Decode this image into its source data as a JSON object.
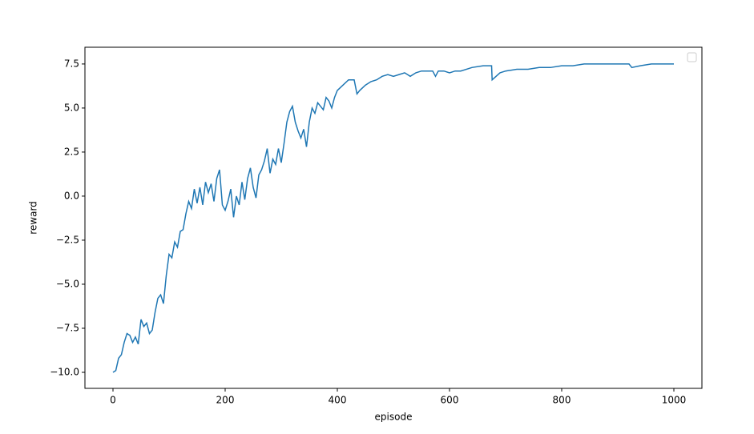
{
  "chart_data": {
    "type": "line",
    "x_label": "episode",
    "y_label": "reward",
    "x": [
      0,
      5,
      10,
      15,
      20,
      25,
      30,
      35,
      40,
      45,
      50,
      55,
      60,
      65,
      70,
      75,
      80,
      85,
      90,
      95,
      100,
      105,
      110,
      115,
      120,
      125,
      130,
      135,
      140,
      145,
      150,
      155,
      160,
      165,
      170,
      175,
      180,
      185,
      190,
      195,
      200,
      205,
      210,
      215,
      220,
      225,
      230,
      235,
      240,
      245,
      250,
      255,
      260,
      265,
      270,
      275,
      280,
      285,
      290,
      295,
      300,
      305,
      310,
      315,
      320,
      325,
      330,
      335,
      340,
      345,
      350,
      355,
      360,
      365,
      370,
      375,
      380,
      385,
      390,
      395,
      400,
      410,
      420,
      430,
      435,
      440,
      450,
      460,
      470,
      480,
      490,
      500,
      510,
      520,
      530,
      540,
      550,
      560,
      570,
      575,
      580,
      590,
      600,
      610,
      620,
      640,
      660,
      675,
      676,
      690,
      700,
      720,
      740,
      760,
      780,
      800,
      820,
      840,
      860,
      880,
      900,
      920,
      925,
      940,
      960,
      980,
      1000
    ],
    "series": [
      {
        "color": "#1f77b4",
        "values": [
          -10,
          -9.9,
          -9.2,
          -9.0,
          -8.3,
          -7.8,
          -7.9,
          -8.3,
          -8.0,
          -8.4,
          -7.0,
          -7.4,
          -7.2,
          -7.8,
          -7.6,
          -6.6,
          -5.8,
          -5.6,
          -6.1,
          -4.5,
          -3.3,
          -3.5,
          -2.6,
          -2.9,
          -2.0,
          -1.9,
          -1.0,
          -0.3,
          -0.7,
          0.4,
          -0.4,
          0.5,
          -0.5,
          0.8,
          0.2,
          0.7,
          -0.3,
          1.0,
          1.5,
          -0.5,
          -0.8,
          -0.3,
          0.4,
          -1.2,
          0.0,
          -0.5,
          0.8,
          -0.2,
          1.0,
          1.6,
          0.5,
          -0.1,
          1.2,
          1.5,
          2.0,
          2.7,
          1.3,
          2.1,
          1.8,
          2.7,
          1.9,
          3.0,
          4.2,
          4.8,
          5.1,
          4.2,
          3.7,
          3.3,
          3.8,
          2.8,
          4.2,
          5.0,
          4.7,
          5.3,
          5.1,
          4.9,
          5.6,
          5.4,
          5.0,
          5.6,
          6.0,
          6.3,
          6.6,
          6.6,
          5.8,
          6.0,
          6.3,
          6.5,
          6.6,
          6.8,
          6.9,
          6.8,
          6.9,
          7.0,
          6.8,
          7.0,
          7.1,
          7.1,
          7.1,
          6.8,
          7.1,
          7.1,
          7.0,
          7.1,
          7.1,
          7.3,
          7.4,
          7.4,
          6.6,
          7.0,
          7.1,
          7.2,
          7.2,
          7.3,
          7.3,
          7.4,
          7.4,
          7.5,
          7.5,
          7.5,
          7.5,
          7.5,
          7.3,
          7.4,
          7.5,
          7.5,
          7.5
        ]
      }
    ],
    "xlim": [
      -50,
      1050
    ],
    "ylim": [
      -10.91,
      8.45
    ],
    "xticks": [
      0,
      200,
      400,
      600,
      800,
      1000
    ],
    "yticks": [
      {
        "value": -10,
        "label": "−10.0"
      },
      {
        "value": -7.5,
        "label": "−7.5"
      },
      {
        "value": -5,
        "label": "−5.0"
      },
      {
        "value": -2.5,
        "label": "−2.5"
      },
      {
        "value": 0,
        "label": "0.0"
      },
      2.5,
      {
        "value": 5,
        "label": "5.0"
      },
      7.5
    ]
  }
}
